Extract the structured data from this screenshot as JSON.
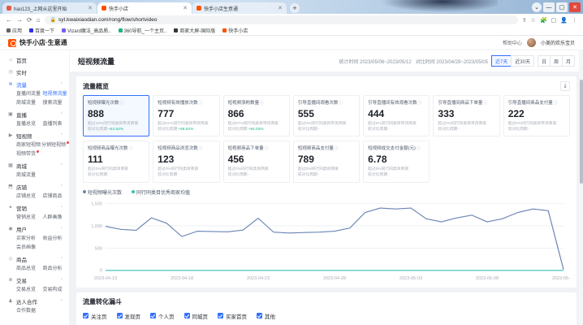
{
  "browser": {
    "tabs": [
      {
        "title": "hao123_上网从这里开始",
        "color": "#e2594a",
        "variant": ""
      },
      {
        "title": "快手小店",
        "color": "#ff5000",
        "variant": "active"
      },
      {
        "title": "快手小店生意通",
        "color": "#ff5000",
        "variant": ""
      }
    ],
    "url": "syt.kwaixiaodian.com/rong/flow/shortvideo",
    "bookmarks": [
      {
        "label": "应用",
        "color": "#5f6368"
      },
      {
        "label": "百度一下",
        "color": "#2932e1"
      },
      {
        "label": "Vizard魔法_高品质..",
        "color": "#7b5cf0"
      },
      {
        "label": "360导航_一个主页..",
        "color": "#1db57c"
      },
      {
        "label": "商家大屏-国际版",
        "color": "#33373d"
      },
      {
        "label": "快手小店",
        "color": "#ff5000"
      }
    ]
  },
  "app_header": {
    "logo_text": "快手小店·生意通",
    "help": "帮助中心",
    "user": "小美的欢乐宝贝"
  },
  "sidebar": {
    "sections": [
      {
        "icon": "home-icon",
        "glyph": "⌂",
        "label": "首页",
        "expandable": false,
        "subs": []
      },
      {
        "icon": "realtime-icon",
        "glyph": "◷",
        "label": "实时",
        "expandable": false,
        "subs": []
      },
      {
        "icon": "traffic-icon",
        "glyph": "≋",
        "label": "流量",
        "active": true,
        "expandable": true,
        "subs": [
          {
            "label": "直播间流量"
          },
          {
            "label": "短视频流量",
            "active": true
          },
          {
            "label": "商城流量"
          },
          {
            "label": "搜索流量"
          }
        ]
      },
      {
        "icon": "live-icon",
        "glyph": "▣",
        "label": "直播",
        "expandable": true,
        "subs": [
          {
            "label": "直播总览"
          },
          {
            "label": "直播列表"
          }
        ]
      },
      {
        "icon": "video-icon",
        "glyph": "▶",
        "label": "短视频",
        "expandable": true,
        "subs": [
          {
            "label": "商家短视频"
          },
          {
            "label": "分销短视频",
            "dot": true
          },
          {
            "label": "视频带货",
            "dot": true
          }
        ]
      },
      {
        "icon": "mall-icon",
        "glyph": "▦",
        "label": "商城",
        "expandable": true,
        "subs": [
          {
            "label": "商城流量"
          }
        ]
      },
      {
        "icon": "shop-icon",
        "glyph": "⬒",
        "label": "店铺",
        "expandable": true,
        "subs": [
          {
            "label": "店铺总览"
          },
          {
            "label": "店铺商品"
          }
        ]
      },
      {
        "icon": "marketing-icon",
        "glyph": "✦",
        "label": "营销",
        "expandable": true,
        "subs": [
          {
            "label": "营销总览"
          },
          {
            "label": "人群画像"
          }
        ]
      },
      {
        "icon": "user-icon",
        "glyph": "◉",
        "label": "用户",
        "expandable": true,
        "subs": [
          {
            "label": "买家分析"
          },
          {
            "label": "收益分析"
          },
          {
            "label": "会员画像"
          }
        ]
      },
      {
        "icon": "goods-icon",
        "glyph": "◇",
        "label": "商品",
        "expandable": true,
        "subs": [
          {
            "label": "商品总览"
          },
          {
            "label": "商品分析"
          }
        ]
      },
      {
        "icon": "trade-icon",
        "glyph": "⊗",
        "label": "交易",
        "expandable": true,
        "subs": [
          {
            "label": "交易总览"
          },
          {
            "label": "交易构成"
          }
        ]
      },
      {
        "icon": "partner-icon",
        "glyph": "♟",
        "label": "达人合作",
        "expandable": true,
        "subs": [
          {
            "label": "合作数据"
          }
        ]
      }
    ]
  },
  "page": {
    "title": "短视频流量",
    "stat_time": "统计时间 2023/05/06~2023/05/12",
    "compare_time": "对比时间 2023/04/29~2023/05/05",
    "range_buttons": [
      {
        "label": "近7天",
        "variant": "active"
      },
      {
        "label": "近30天",
        "variant": ""
      }
    ],
    "granularity_buttons": [
      {
        "label": "日",
        "variant": ""
      },
      {
        "label": "周",
        "variant": ""
      },
      {
        "label": "月",
        "variant": ""
      }
    ]
  },
  "overview": {
    "title": "流量概览",
    "cards_row1": [
      {
        "title": "短视频曝光次数",
        "value": "888",
        "rank": "超过19%同行同类目带货商家",
        "compare": "较对比周期",
        "delta": "+54.54%",
        "dir": "up",
        "variant": "active"
      },
      {
        "title": "短视频有效播放次数",
        "value": "777",
        "rank": "超过51%同行同类目带货商家",
        "compare": "较对比周期",
        "delta": "+68.52%",
        "dir": "up",
        "variant": ""
      },
      {
        "title": "短视频涨粉数量",
        "value": "866",
        "rank": "超过87%同行同类目带货商家",
        "compare": "较对比周期",
        "delta": "+94.02%",
        "dir": "up",
        "variant": ""
      },
      {
        "title": "引导直播间观看次数",
        "value": "555",
        "rank": "超过0%同行同类目带货商家",
        "compare": "较对比周期",
        "delta": "-",
        "dir": "none",
        "variant": ""
      },
      {
        "title": "引导直播间有效观看次数",
        "value": "444",
        "rank": "超过0%同行同类目带货商家",
        "compare": "较对比周期",
        "delta": "-",
        "dir": "none",
        "variant": ""
      },
      {
        "title": "引导直播间商品下单量",
        "value": "333",
        "rank": "超过0%同行同类目带货商家",
        "compare": "较对比周期",
        "delta": "-",
        "dir": "none",
        "variant": ""
      },
      {
        "title": "引导直播间商品支付量",
        "value": "222",
        "rank": "超过0%同行同类目带货商家",
        "compare": "较对比周期",
        "delta": "-",
        "dir": "none",
        "variant": ""
      }
    ],
    "cards_row2": [
      {
        "title": "短视频商品曝光次数",
        "value": "111",
        "rank": "超过0%同行同类目商家",
        "compare": "较对比周期",
        "delta": "-",
        "dir": "none",
        "variant": ""
      },
      {
        "title": "短视频商品浏览次数",
        "value": "123",
        "rank": "超过0%同行同类目商家",
        "compare": "较对比周期",
        "delta": "-",
        "dir": "none",
        "variant": ""
      },
      {
        "title": "短视频商品下单量",
        "value": "456",
        "rank": "超过0%同行同类目商家",
        "compare": "较对比周期",
        "delta": "-",
        "dir": "none",
        "variant": ""
      },
      {
        "title": "短视频商品支付量",
        "value": "789",
        "rank": "超过0%同行同类目商家",
        "compare": "较对比周期",
        "delta": "-",
        "dir": "none",
        "variant": ""
      },
      {
        "title": "短视频成交支付金额(元)",
        "value": "6.78",
        "rank": "超过0%同行同类目商家",
        "compare": "较对比周期",
        "delta": "-",
        "dir": "none",
        "variant": ""
      }
    ]
  },
  "chart_data": {
    "type": "line",
    "title": "短视频曝光次数趋势",
    "xlabel": "",
    "ylabel": "",
    "ylim": [
      0,
      1500
    ],
    "y_ticks": [
      0,
      500,
      1000,
      1500
    ],
    "x_ticks": [
      "2023-04-13",
      "2023-04-18",
      "2023-04-23",
      "2023-04-28",
      "2023-05-03",
      "2023-05-08",
      "2023-05-13"
    ],
    "x": [
      "2023-04-13",
      "2023-04-14",
      "2023-04-15",
      "2023-04-16",
      "2023-04-17",
      "2023-04-18",
      "2023-04-19",
      "2023-04-20",
      "2023-04-21",
      "2023-04-22",
      "2023-04-23",
      "2023-04-24",
      "2023-04-25",
      "2023-04-26",
      "2023-04-27",
      "2023-04-28",
      "2023-04-29",
      "2023-04-30",
      "2023-05-01",
      "2023-05-02",
      "2023-05-03",
      "2023-05-04",
      "2023-05-05",
      "2023-05-06",
      "2023-05-07",
      "2023-05-08",
      "2023-05-09",
      "2023-05-10",
      "2023-05-11",
      "2023-05-12",
      "2023-05-13"
    ],
    "legend": [
      {
        "name": "短视频曝光次数",
        "color": "#6a85b5"
      },
      {
        "name": "同行同类目优秀商家均值",
        "color": "#35c3b0"
      }
    ],
    "series": [
      {
        "name": "短视频曝光次数",
        "color": "#6a85b5",
        "values": [
          990,
          920,
          900,
          1180,
          1060,
          760,
          880,
          875,
          865,
          905,
          1170,
          860,
          840,
          850,
          860,
          880,
          950,
          1300,
          1400,
          1380,
          1400,
          1160,
          1090,
          1180,
          1240,
          1090,
          1160,
          1300,
          1380,
          1340,
          20
        ]
      },
      {
        "name": "同行同类目优秀商家均值",
        "color": "#35c3b0",
        "values": [
          0,
          0,
          0,
          0,
          0,
          0,
          0,
          0,
          0,
          0,
          0,
          0,
          0,
          0,
          0,
          0,
          0,
          0,
          0,
          0,
          0,
          0,
          0,
          0,
          0,
          0,
          0,
          0,
          0,
          0,
          0
        ]
      }
    ],
    "legend_position": "top-left",
    "grid": true
  },
  "funnel": {
    "title": "流量转化漏斗",
    "filters": [
      {
        "label": "关注页"
      },
      {
        "label": "发现页"
      },
      {
        "label": "个人页"
      },
      {
        "label": "同城页"
      },
      {
        "label": "买家首页"
      },
      {
        "label": "其他"
      }
    ]
  }
}
